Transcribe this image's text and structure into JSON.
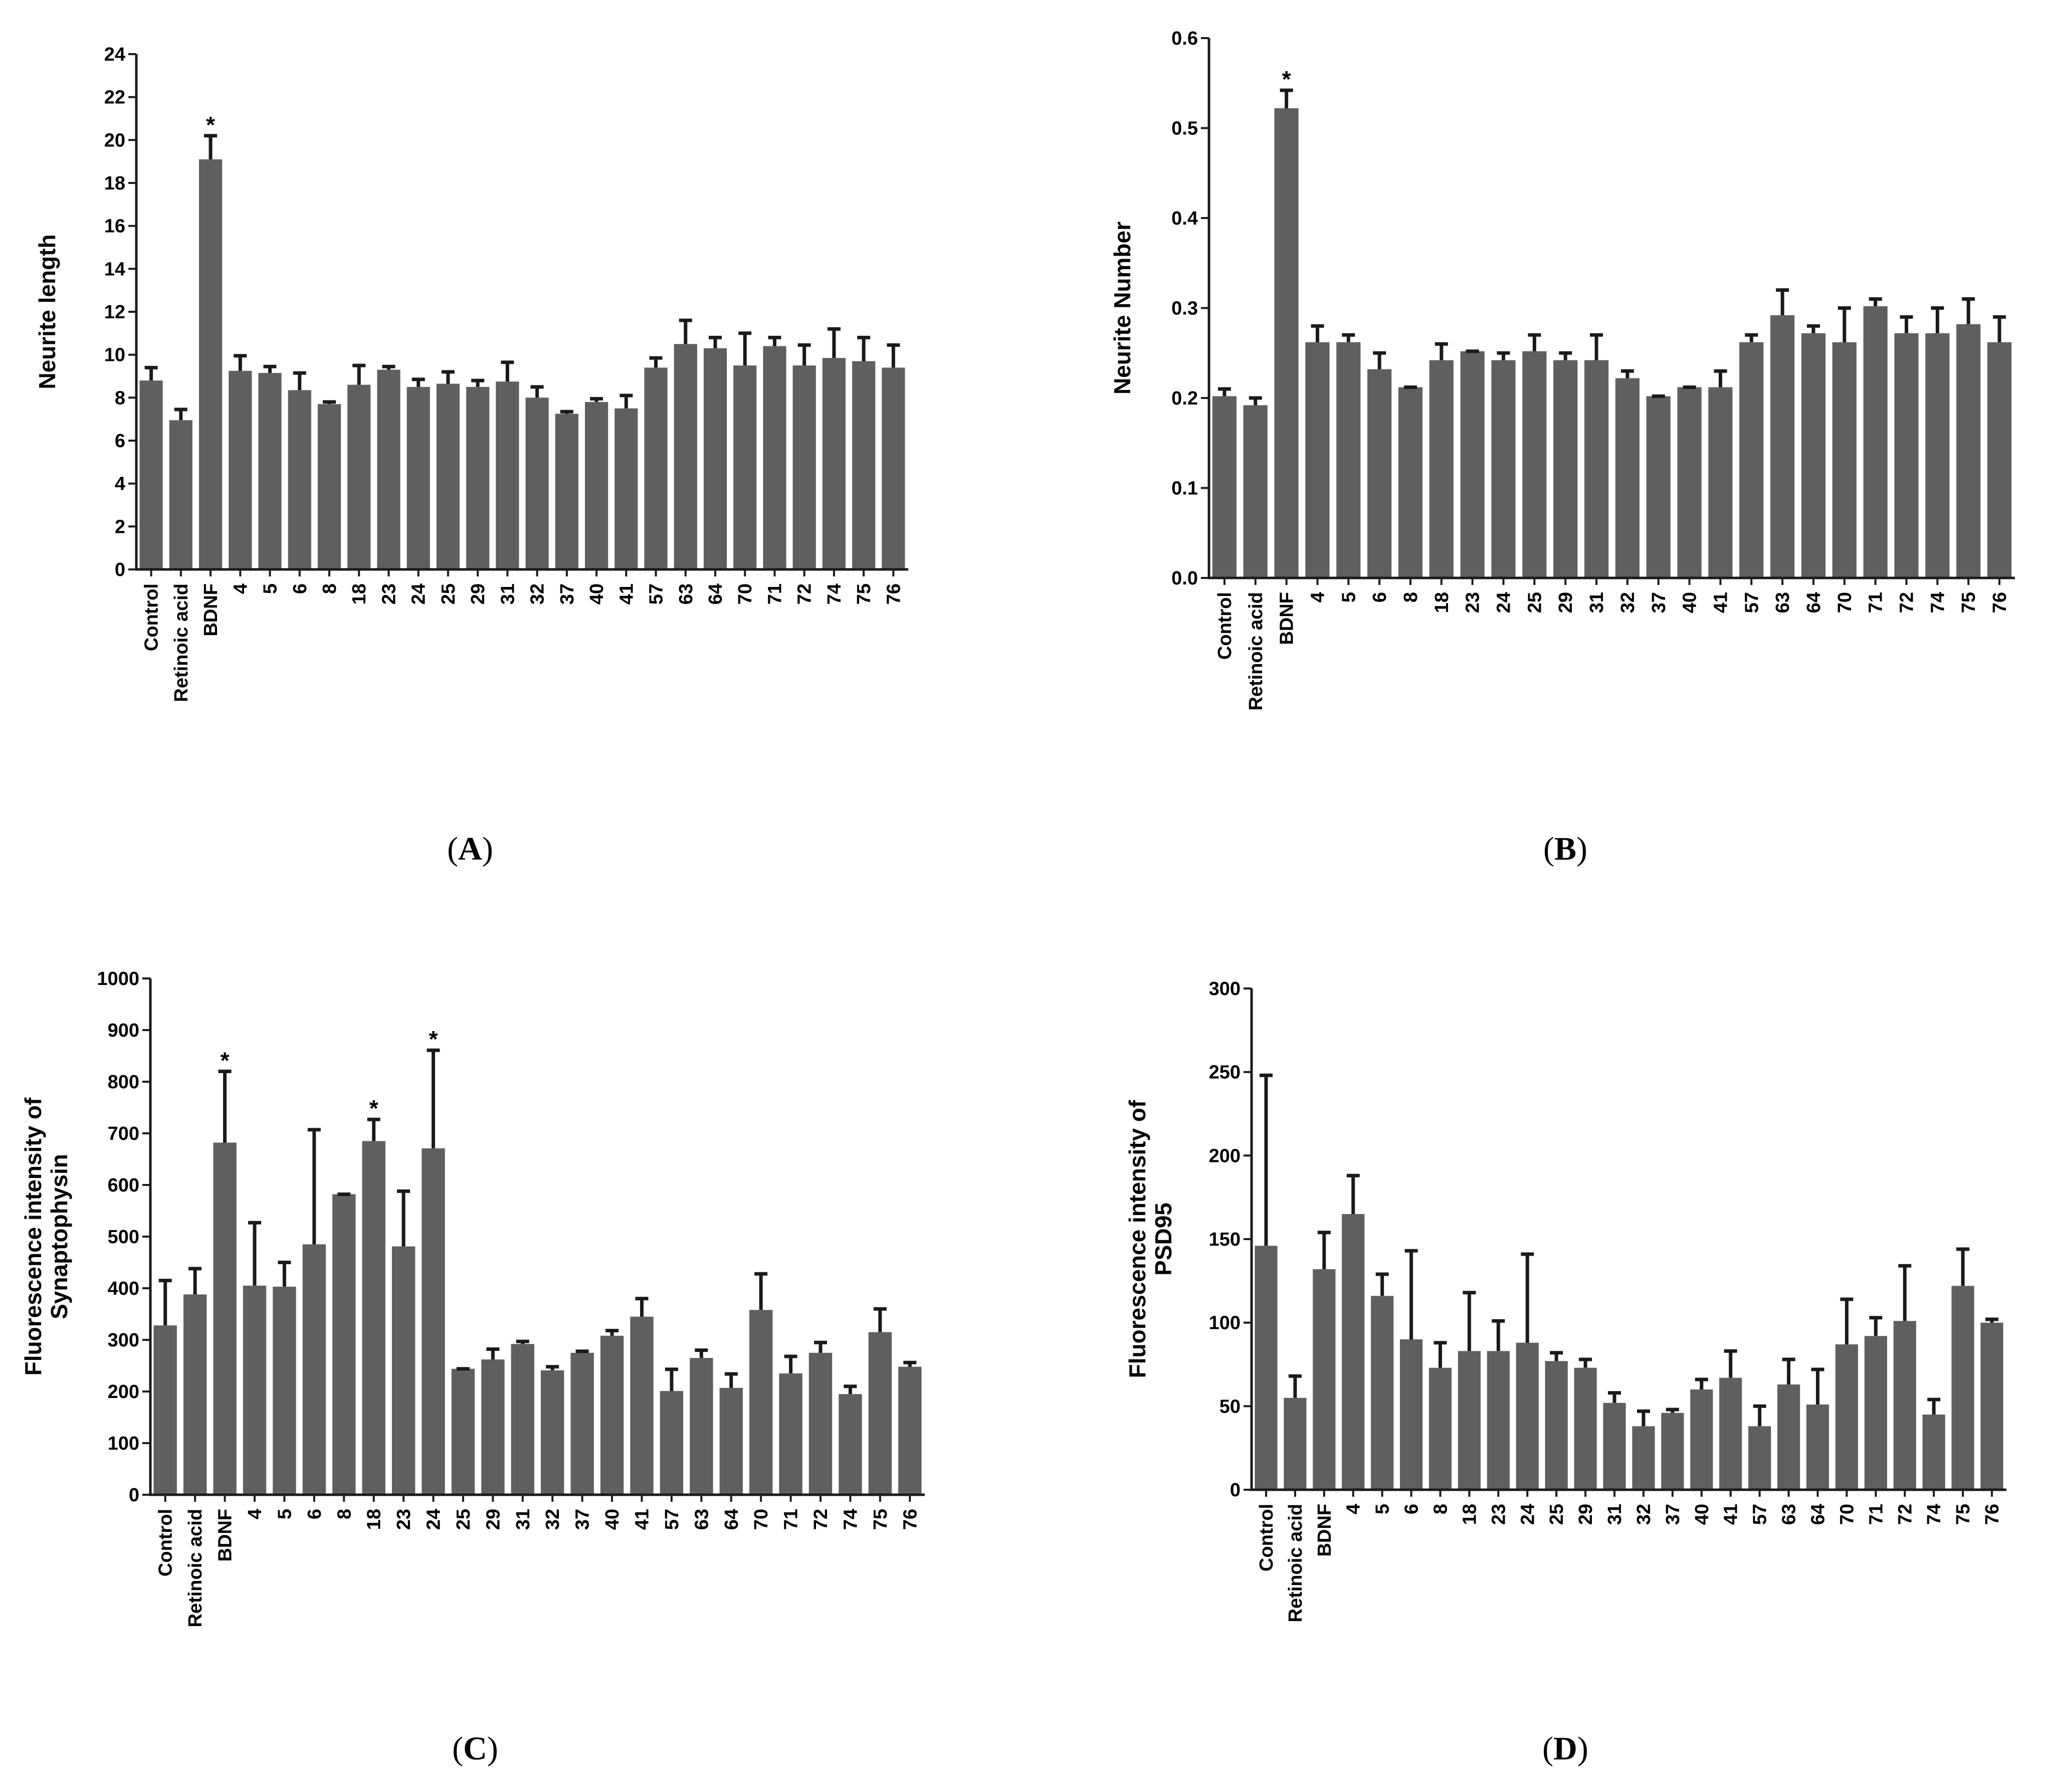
{
  "chart_data": [
    {
      "type": "bar",
      "panel_label": "A",
      "ylabel": "Neurite length",
      "ylim": [
        0,
        24
      ],
      "ticks": [
        0,
        2,
        4,
        6,
        8,
        10,
        12,
        14,
        16,
        18,
        20,
        22,
        24
      ],
      "tick_labels": [
        "0",
        "2",
        "4",
        "6",
        "8",
        "10",
        "12",
        "14",
        "16",
        "18",
        "20",
        "22",
        "24"
      ],
      "categories": [
        "Control",
        "Retinoic acid",
        "BDNF",
        "4",
        "5",
        "6",
        "8",
        "18",
        "23",
        "24",
        "25",
        "29",
        "31",
        "32",
        "37",
        "40",
        "41",
        "57",
        "63",
        "64",
        "70",
        "71",
        "72",
        "74",
        "75",
        "76"
      ],
      "values": [
        8.8,
        6.95,
        19.1,
        9.25,
        9.15,
        8.35,
        7.7,
        8.6,
        9.3,
        8.5,
        8.65,
        8.5,
        8.75,
        8.0,
        7.25,
        7.8,
        7.5,
        9.4,
        10.5,
        10.3,
        9.5,
        10.4,
        9.5,
        9.85,
        9.7,
        9.4
      ],
      "errors": [
        0.6,
        0.5,
        1.1,
        0.7,
        0.3,
        0.8,
        0.1,
        0.9,
        0.15,
        0.35,
        0.55,
        0.3,
        0.9,
        0.5,
        0.1,
        0.15,
        0.6,
        0.45,
        1.1,
        0.5,
        1.5,
        0.4,
        0.95,
        1.35,
        1.1,
        1.05
      ],
      "significant": [
        "BDNF"
      ],
      "significance_marker": "*"
    },
    {
      "type": "bar",
      "panel_label": "B",
      "ylabel": "Neurite Number",
      "ylim": [
        0,
        0.6
      ],
      "ticks": [
        0,
        0.1,
        0.2,
        0.3,
        0.4,
        0.5,
        0.6
      ],
      "tick_labels": [
        "0.0",
        "0.1",
        "0.2",
        "0.3",
        "0.4",
        "0.5",
        "0.6"
      ],
      "categories": [
        "Control",
        "Retinoic acid",
        "BDNF",
        "4",
        "5",
        "6",
        "8",
        "18",
        "23",
        "24",
        "25",
        "29",
        "31",
        "32",
        "37",
        "40",
        "41",
        "57",
        "63",
        "64",
        "70",
        "71",
        "72",
        "74",
        "75",
        "76"
      ],
      "values": [
        0.202,
        0.192,
        0.522,
        0.262,
        0.262,
        0.232,
        0.212,
        0.242,
        0.252,
        0.242,
        0.252,
        0.242,
        0.242,
        0.222,
        0.202,
        0.212,
        0.212,
        0.262,
        0.292,
        0.272,
        0.262,
        0.302,
        0.272,
        0.272,
        0.282,
        0.262
      ],
      "errors": [
        0.008,
        0.008,
        0.02,
        0.018,
        0.008,
        0.018,
        0,
        0.018,
        0,
        0.008,
        0.018,
        0.008,
        0.028,
        0.008,
        0,
        0,
        0.018,
        0.008,
        0.028,
        0.008,
        0.038,
        0.008,
        0.018,
        0.028,
        0.028,
        0.028
      ],
      "significant": [
        "BDNF"
      ],
      "significance_marker": "*"
    },
    {
      "type": "bar",
      "panel_label": "C",
      "ylabel": [
        "Fluorescence intensity of",
        "Synaptophysin"
      ],
      "ylim": [
        0,
        1000
      ],
      "ticks": [
        0,
        100,
        200,
        300,
        400,
        500,
        600,
        700,
        800,
        900,
        1000
      ],
      "tick_labels": [
        "0",
        "100",
        "200",
        "300",
        "400",
        "500",
        "600",
        "700",
        "800",
        "900",
        "1000"
      ],
      "categories": [
        "Control",
        "Retinoic acid",
        "BDNF",
        "4",
        "5",
        "6",
        "8",
        "18",
        "23",
        "24",
        "25",
        "29",
        "31",
        "32",
        "37",
        "40",
        "41",
        "57",
        "63",
        "64",
        "70",
        "71",
        "72",
        "74",
        "75",
        "76"
      ],
      "values": [
        328,
        388,
        682,
        405,
        403,
        485,
        582,
        685,
        481,
        671,
        244,
        262,
        292,
        241,
        275,
        308,
        345,
        201,
        265,
        207,
        358,
        235,
        275,
        195,
        315,
        248
      ],
      "errors": [
        87,
        50,
        138,
        122,
        47,
        222,
        0,
        42,
        107,
        190,
        0,
        20,
        5,
        7,
        3,
        10,
        35,
        42,
        15,
        27,
        70,
        33,
        20,
        15,
        45,
        8
      ],
      "significant": [
        "BDNF",
        "18",
        "24"
      ],
      "significance_marker": "*"
    },
    {
      "type": "bar",
      "panel_label": "D",
      "ylabel": [
        "Fluorescence intensity of",
        "PSD95"
      ],
      "ylim": [
        0,
        300
      ],
      "ticks": [
        0,
        50,
        100,
        150,
        200,
        250,
        300
      ],
      "tick_labels": [
        "0",
        "50",
        "100",
        "150",
        "200",
        "250",
        "300"
      ],
      "categories": [
        "Control",
        "Retinoic acid",
        "BDNF",
        "4",
        "5",
        "6",
        "8",
        "18",
        "23",
        "24",
        "25",
        "29",
        "31",
        "32",
        "37",
        "40",
        "41",
        "57",
        "63",
        "64",
        "70",
        "71",
        "72",
        "74",
        "75",
        "76"
      ],
      "values": [
        146,
        55,
        132,
        165,
        116,
        90,
        73,
        83,
        83,
        88,
        77,
        73,
        52,
        38,
        46,
        60,
        67,
        38,
        63,
        51,
        87,
        92,
        101,
        45,
        122,
        100
      ],
      "errors": [
        102,
        13,
        22,
        23,
        13,
        53,
        15,
        35,
        18,
        53,
        5,
        5,
        6,
        9,
        2,
        6,
        16,
        12,
        15,
        21,
        27,
        11,
        33,
        9,
        22,
        2
      ],
      "significant": [],
      "significance_marker": "*"
    }
  ],
  "colors": {
    "bar": "#5f5f5f",
    "axis": "#1a1a1a",
    "text": "#000000"
  }
}
